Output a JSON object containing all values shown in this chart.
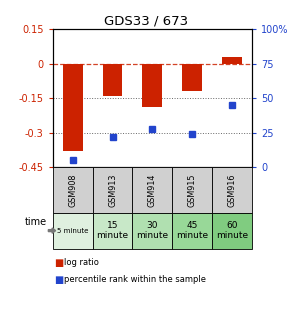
{
  "title": "GDS33 / 673",
  "samples": [
    "GSM908",
    "GSM913",
    "GSM914",
    "GSM915",
    "GSM916"
  ],
  "time_labels": [
    "5 minute",
    "15\nminute",
    "30\nminute",
    "45\nminute",
    "60\nminute"
  ],
  "log_ratios": [
    -0.38,
    -0.14,
    -0.19,
    -0.12,
    0.03
  ],
  "percentile_ranks": [
    5,
    22,
    28,
    24,
    45
  ],
  "bar_color": "#cc2200",
  "dot_color": "#2244cc",
  "ylim_left": [
    -0.45,
    0.15
  ],
  "ylim_right": [
    0,
    100
  ],
  "yticks_left": [
    0.15,
    0.0,
    -0.15,
    -0.3,
    -0.45
  ],
  "yticks_right": [
    100,
    75,
    50,
    25,
    0
  ],
  "dotted_lines": [
    -0.15,
    -0.3
  ],
  "gsm_colors": [
    "#d0d0d0",
    "#d0d0d0",
    "#d0d0d0",
    "#d0d0d0",
    "#d0d0d0"
  ],
  "time_colors": [
    "#dff0df",
    "#c8e8c8",
    "#b0e0b0",
    "#98d898",
    "#80cc80"
  ],
  "legend_log_ratio": "log ratio",
  "legend_percentile": "percentile rank within the sample"
}
